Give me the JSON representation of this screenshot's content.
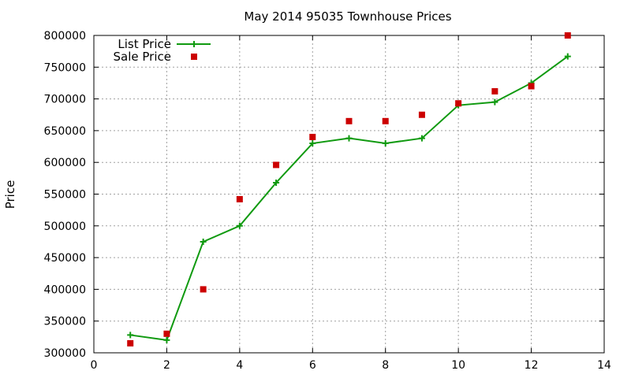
{
  "chart_data": {
    "type": "line",
    "title": "May 2014 95035 Townhouse Prices",
    "xlabel": "",
    "ylabel": "Price",
    "xlim": [
      0,
      14
    ],
    "ylim": [
      300000,
      800000
    ],
    "xticks": [
      0,
      2,
      4,
      6,
      8,
      10,
      12,
      14
    ],
    "yticks": [
      300000,
      350000,
      400000,
      450000,
      500000,
      550000,
      600000,
      650000,
      700000,
      750000,
      800000
    ],
    "grid": true,
    "legend_position": "top-left",
    "series": [
      {
        "name": "List Price",
        "style": "line-plus",
        "color": "#109a10",
        "x": [
          1,
          2,
          3,
          4,
          5,
          6,
          7,
          8,
          9,
          10,
          11,
          12,
          13
        ],
        "y": [
          328000,
          320000,
          475000,
          500000,
          568000,
          630000,
          638000,
          630000,
          638000,
          690000,
          695000,
          725000,
          767000
        ]
      },
      {
        "name": "Sale Price",
        "style": "square",
        "color": "#cc0000",
        "x": [
          1,
          2,
          3,
          4,
          5,
          6,
          7,
          8,
          9,
          10,
          11,
          12,
          13
        ],
        "y": [
          315000,
          330000,
          400000,
          542000,
          596000,
          640000,
          665000,
          665000,
          675000,
          693000,
          712000,
          720000,
          800000
        ]
      }
    ]
  }
}
